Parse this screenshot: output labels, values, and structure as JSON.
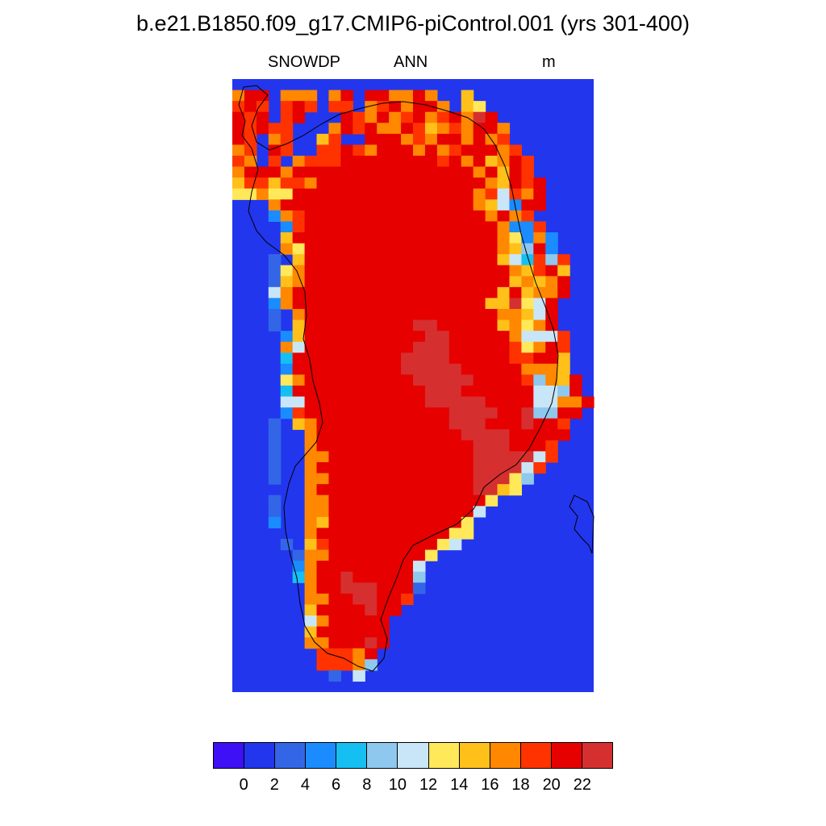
{
  "title": "b.e21.B1850.f09_g17.CMIP6-piControl.001 (yrs 301-400)",
  "subtitle": {
    "left": "SNOWDP",
    "center": "ANN",
    "right": "m"
  },
  "colorbar": {
    "colors": [
      "#3e10f5",
      "#2236ee",
      "#3366e6",
      "#1a8cff",
      "#16bff2",
      "#8ec8ef",
      "#c8e6f7",
      "#ffe85a",
      "#ffc01a",
      "#ff8800",
      "#ff3300",
      "#e60000",
      "#d62f2f"
    ],
    "ticks": [
      "0",
      "2",
      "4",
      "6",
      "8",
      "10",
      "12",
      "14",
      "16",
      "18",
      "20",
      "22"
    ]
  },
  "chart_data": {
    "type": "heatmap",
    "variable": "SNOWDP",
    "season": "ANN",
    "units": "m",
    "levels": [
      0,
      2,
      4,
      6,
      8,
      10,
      12,
      14,
      16,
      18,
      20,
      22
    ],
    "ocean_class": 1,
    "class_key": "0:<0, 1:0-2, 2:2-4, 3:4-6, 4:6-8, 5:8-10, 6:10-12, 7:12-14, 8:14-16, 9:16-18, 10:18-20, 11:20-22, 12:>22",
    "grid_rows": [
      "..............................",
      "9BB.999.9B.BB99B9..8..........",
      "ABA.ABA.AA.9AB9BB9.87.........",
      "BAB.AB...BA9B9AB9AB9CB........",
      "BABAA...9BAB99BA89A9BB9.......",
      "BA.9A..8A..BBB9A9BB9B9A.......",
      "9A.BA..AABA9BBB9B9ABBB9A......",
      "A9.A.9AAABBBBBBBBAB9B89BA.....",
      "9BBB9BBBBBBBBBBBBBBB9B8BA.....",
      "8AA8AA9BBBBBBBBBBBBBB98BAB....",
      "77977BBBBBBBBBBBBBBB9A6A9B....",
      "...9BBBBBBBBBBBBBBBB9863BB....",
      "...39ABBBBBBBBBBBBBBB9B9A.....",
      "....3ABBBBBBBBBBBBBBBB933A....",
      "....8BBBBBBBBBBBBBBBBB97393...",
      "....97BBBBBBBBBBBBBBBB985B3...",
      "...2.8BBBBBBBBBBBBBBBB864A5A..",
      "...279BBBBBBBBBBBBBBBBB98AB8..",
      "...289BBBBBBBBBBBBBBBBB8989B..",
      "...69BBBBBBBBBBBBBBBBB8B899B..",
      "...39BBBBBBBBBBBBBBBB88C76B...",
      "...2.9BBBBBBBBBBBBBBBB9986B...",
      "...2.8BBBBBBBBBCCBBBBB8979B...",
      "....38BBBBBBBBBBCCBBBBB9666A..",
      "....96BBBBBBBBBCCCBBBBBA79BA..",
      "....4BBBBBBBBBCCCCBBBBBAABB8..",
      "....3BBBBBBBBBCCCCCBBBBB9998..",
      "....79BBBBBBBBBCCCCCBBBBA598B.",
      "....4BBBBBBBBBBBCCCBBBBBB665B.",
      "....66BBBBBBBBBBCCCCCBBBB6699B",
      "....3ABBBBBBBBBBBBCCCCBBC55BB.",
      "...2.89BBBBBBBBBBBCCCBBBCBBA..",
      "...2..9BBBBBBBBBBBBCCCCBBBBB..",
      "...2..9BBBBBBBBBBBBBCCCBBBA...",
      "...2..99BBBBBBBBBBBBCCCCC6A...",
      "...2..9BBBBBBBBBBBBBCCCC6A....",
      "...2..99BBBBBBBBBBBBCCC75.....",
      "......9BBBBBBBBBBBBBCC87......",
      "...2..99BBBBBBBBBBBBB7........",
      "...2..99BBBBBBBBBBBB6.........",
      "...3..98BBBBBBBBBBB7..........",
      "......9BBBBBBBBBBB77..........",
      "....2.8ABBBBBBBBB76...........",
      ".....299BBBBBBBB7.............",
      ".....39BBBBBBBB6..............",
      ".....49BBCBBBBB5..............",
      "......9BBCCCBBB2..............",
      "......99BBCCBBA...............",
      "......8BBBBCBB................",
      "......69BBBBB.................",
      "......8BBBBBB.................",
      "......99BBBCB.................",
      ".......AAA9B..................",
      ".......AAA95..................",
      "........2.6...................",
      ".............................."
    ]
  }
}
